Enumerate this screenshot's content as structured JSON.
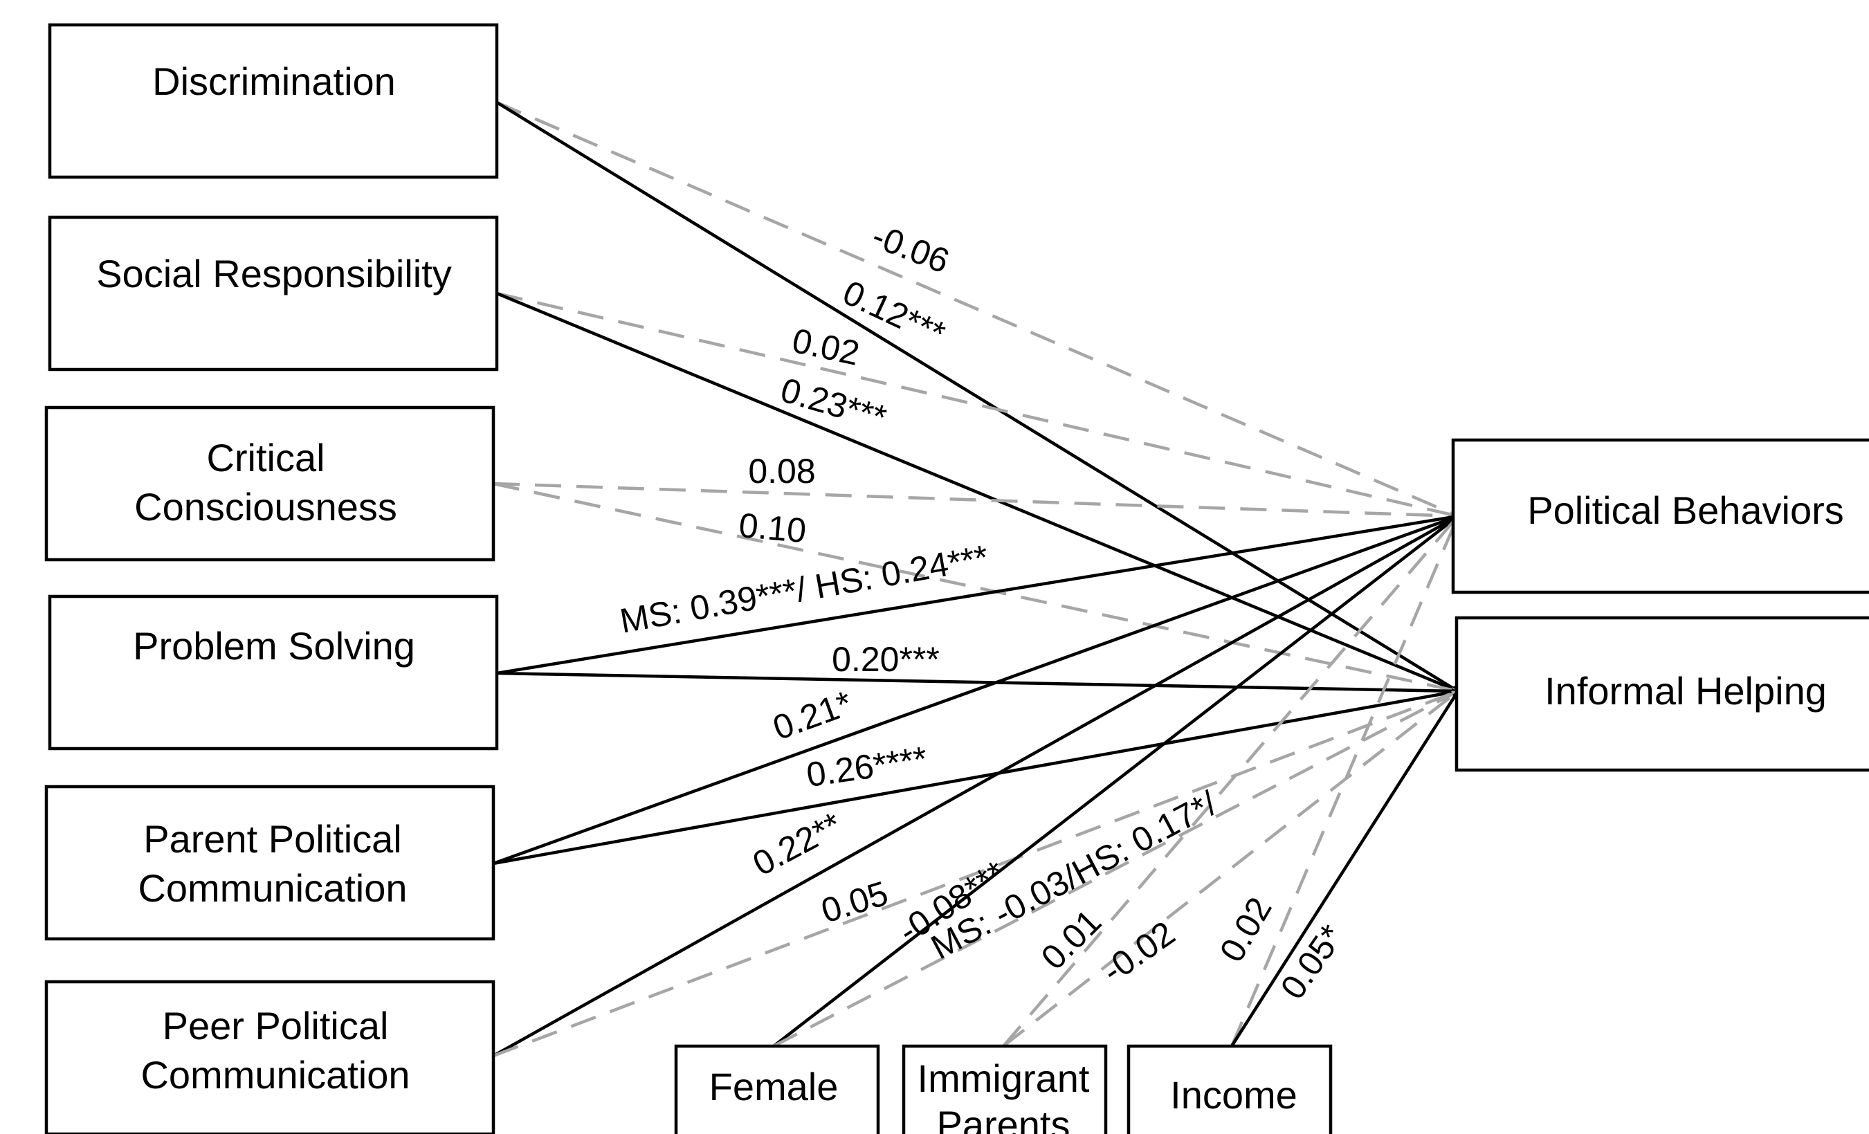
{
  "colors": {
    "significant_path": "#000000",
    "nonsignificant_path": "#a6a6a6",
    "box_border": "#000000",
    "background": "#ffffff"
  },
  "nodes": {
    "discrimination": [
      "Discrimination"
    ],
    "social_responsibility": [
      "Social Responsibility"
    ],
    "critical_consciousness": [
      "Critical",
      "Consciousness"
    ],
    "problem_solving": [
      "Problem Solving"
    ],
    "parent_political_communication": [
      "Parent Political",
      "Communication"
    ],
    "peer_political_communication": [
      "Peer Political",
      "Communication"
    ],
    "female": [
      "Female"
    ],
    "immigrant_parents": [
      "Immigrant",
      "Parents"
    ],
    "income": [
      "Income"
    ],
    "political_behaviors": [
      "Political Behaviors"
    ],
    "informal_helping": [
      "Informal Helping"
    ]
  },
  "edges": [
    {
      "id": "disc-pb",
      "from": "discrimination",
      "to": "political_behaviors",
      "label": "-0.06",
      "significant": false
    },
    {
      "id": "disc-ih",
      "from": "discrimination",
      "to": "informal_helping",
      "label": "0.12***",
      "significant": true
    },
    {
      "id": "sr-pb",
      "from": "social_responsibility",
      "to": "political_behaviors",
      "label": "0.02",
      "significant": false
    },
    {
      "id": "sr-ih",
      "from": "social_responsibility",
      "to": "informal_helping",
      "label": "0.23***",
      "significant": true
    },
    {
      "id": "cc-pb",
      "from": "critical_consciousness",
      "to": "political_behaviors",
      "label": "0.08",
      "significant": false
    },
    {
      "id": "cc-ih",
      "from": "critical_consciousness",
      "to": "informal_helping",
      "label": "0.10",
      "significant": false
    },
    {
      "id": "ps-pb",
      "from": "problem_solving",
      "to": "political_behaviors",
      "label": "MS: 0.39***/ HS: 0.24***",
      "significant": true
    },
    {
      "id": "ps-ih",
      "from": "problem_solving",
      "to": "informal_helping",
      "label": "0.20***",
      "significant": true
    },
    {
      "id": "ppc-pb",
      "from": "parent_political_communication",
      "to": "political_behaviors",
      "label": "0.21*",
      "significant": true
    },
    {
      "id": "ppc-ih",
      "from": "parent_political_communication",
      "to": "informal_helping",
      "label": "0.26****",
      "significant": true
    },
    {
      "id": "peer-pb",
      "from": "peer_political_communication",
      "to": "political_behaviors",
      "label": "0.22**",
      "significant": true
    },
    {
      "id": "peer-ih",
      "from": "peer_political_communication",
      "to": "informal_helping",
      "label": "0.05",
      "significant": false
    },
    {
      "id": "fem-pb",
      "from": "female",
      "to": "political_behaviors",
      "label": "-0.08***",
      "significant": true
    },
    {
      "id": "fem-ih",
      "from": "female",
      "to": "informal_helping",
      "label": "MS: -0.03/HS: 0.17*/",
      "significant": false
    },
    {
      "id": "imm-pb",
      "from": "immigrant_parents",
      "to": "political_behaviors",
      "label": "0.01",
      "significant": false
    },
    {
      "id": "imm-ih",
      "from": "immigrant_parents",
      "to": "informal_helping",
      "label": "-0.02",
      "significant": false
    },
    {
      "id": "inc-pb",
      "from": "income",
      "to": "political_behaviors",
      "label": "0.02",
      "significant": false
    },
    {
      "id": "inc-ih",
      "from": "income",
      "to": "informal_helping",
      "label": "0.05*",
      "significant": true
    }
  ]
}
